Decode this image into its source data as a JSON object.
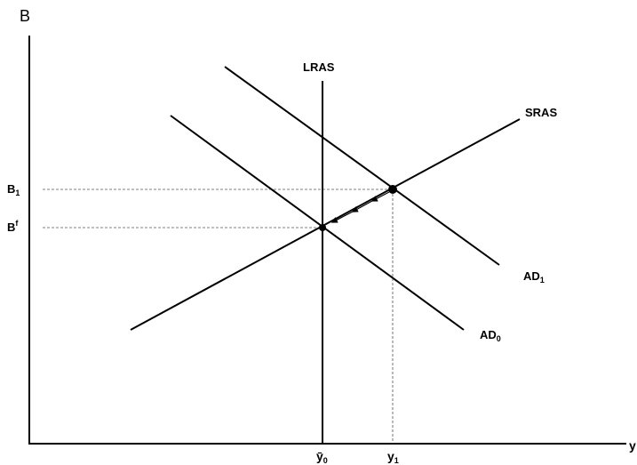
{
  "diagram": {
    "y_axis": {
      "label": "B"
    },
    "x_axis": {
      "label": "y"
    },
    "curves": {
      "lras": "LRAS",
      "sras": "SRAS",
      "ad1": {
        "base": "AD",
        "sub": "1"
      },
      "ad0": {
        "base": "AD",
        "sub": "0"
      }
    },
    "y_ticks": {
      "b1": {
        "base": "B",
        "sub": "1"
      },
      "bf": {
        "base": "B",
        "sup": "f"
      }
    },
    "x_ticks": {
      "ybar0": {
        "base": "ȳ",
        "sub": "0"
      },
      "y1": {
        "base": "y",
        "sub": "1"
      }
    },
    "colors": {
      "line": "#000000",
      "guide": "#555555",
      "background": "#ffffff"
    }
  }
}
